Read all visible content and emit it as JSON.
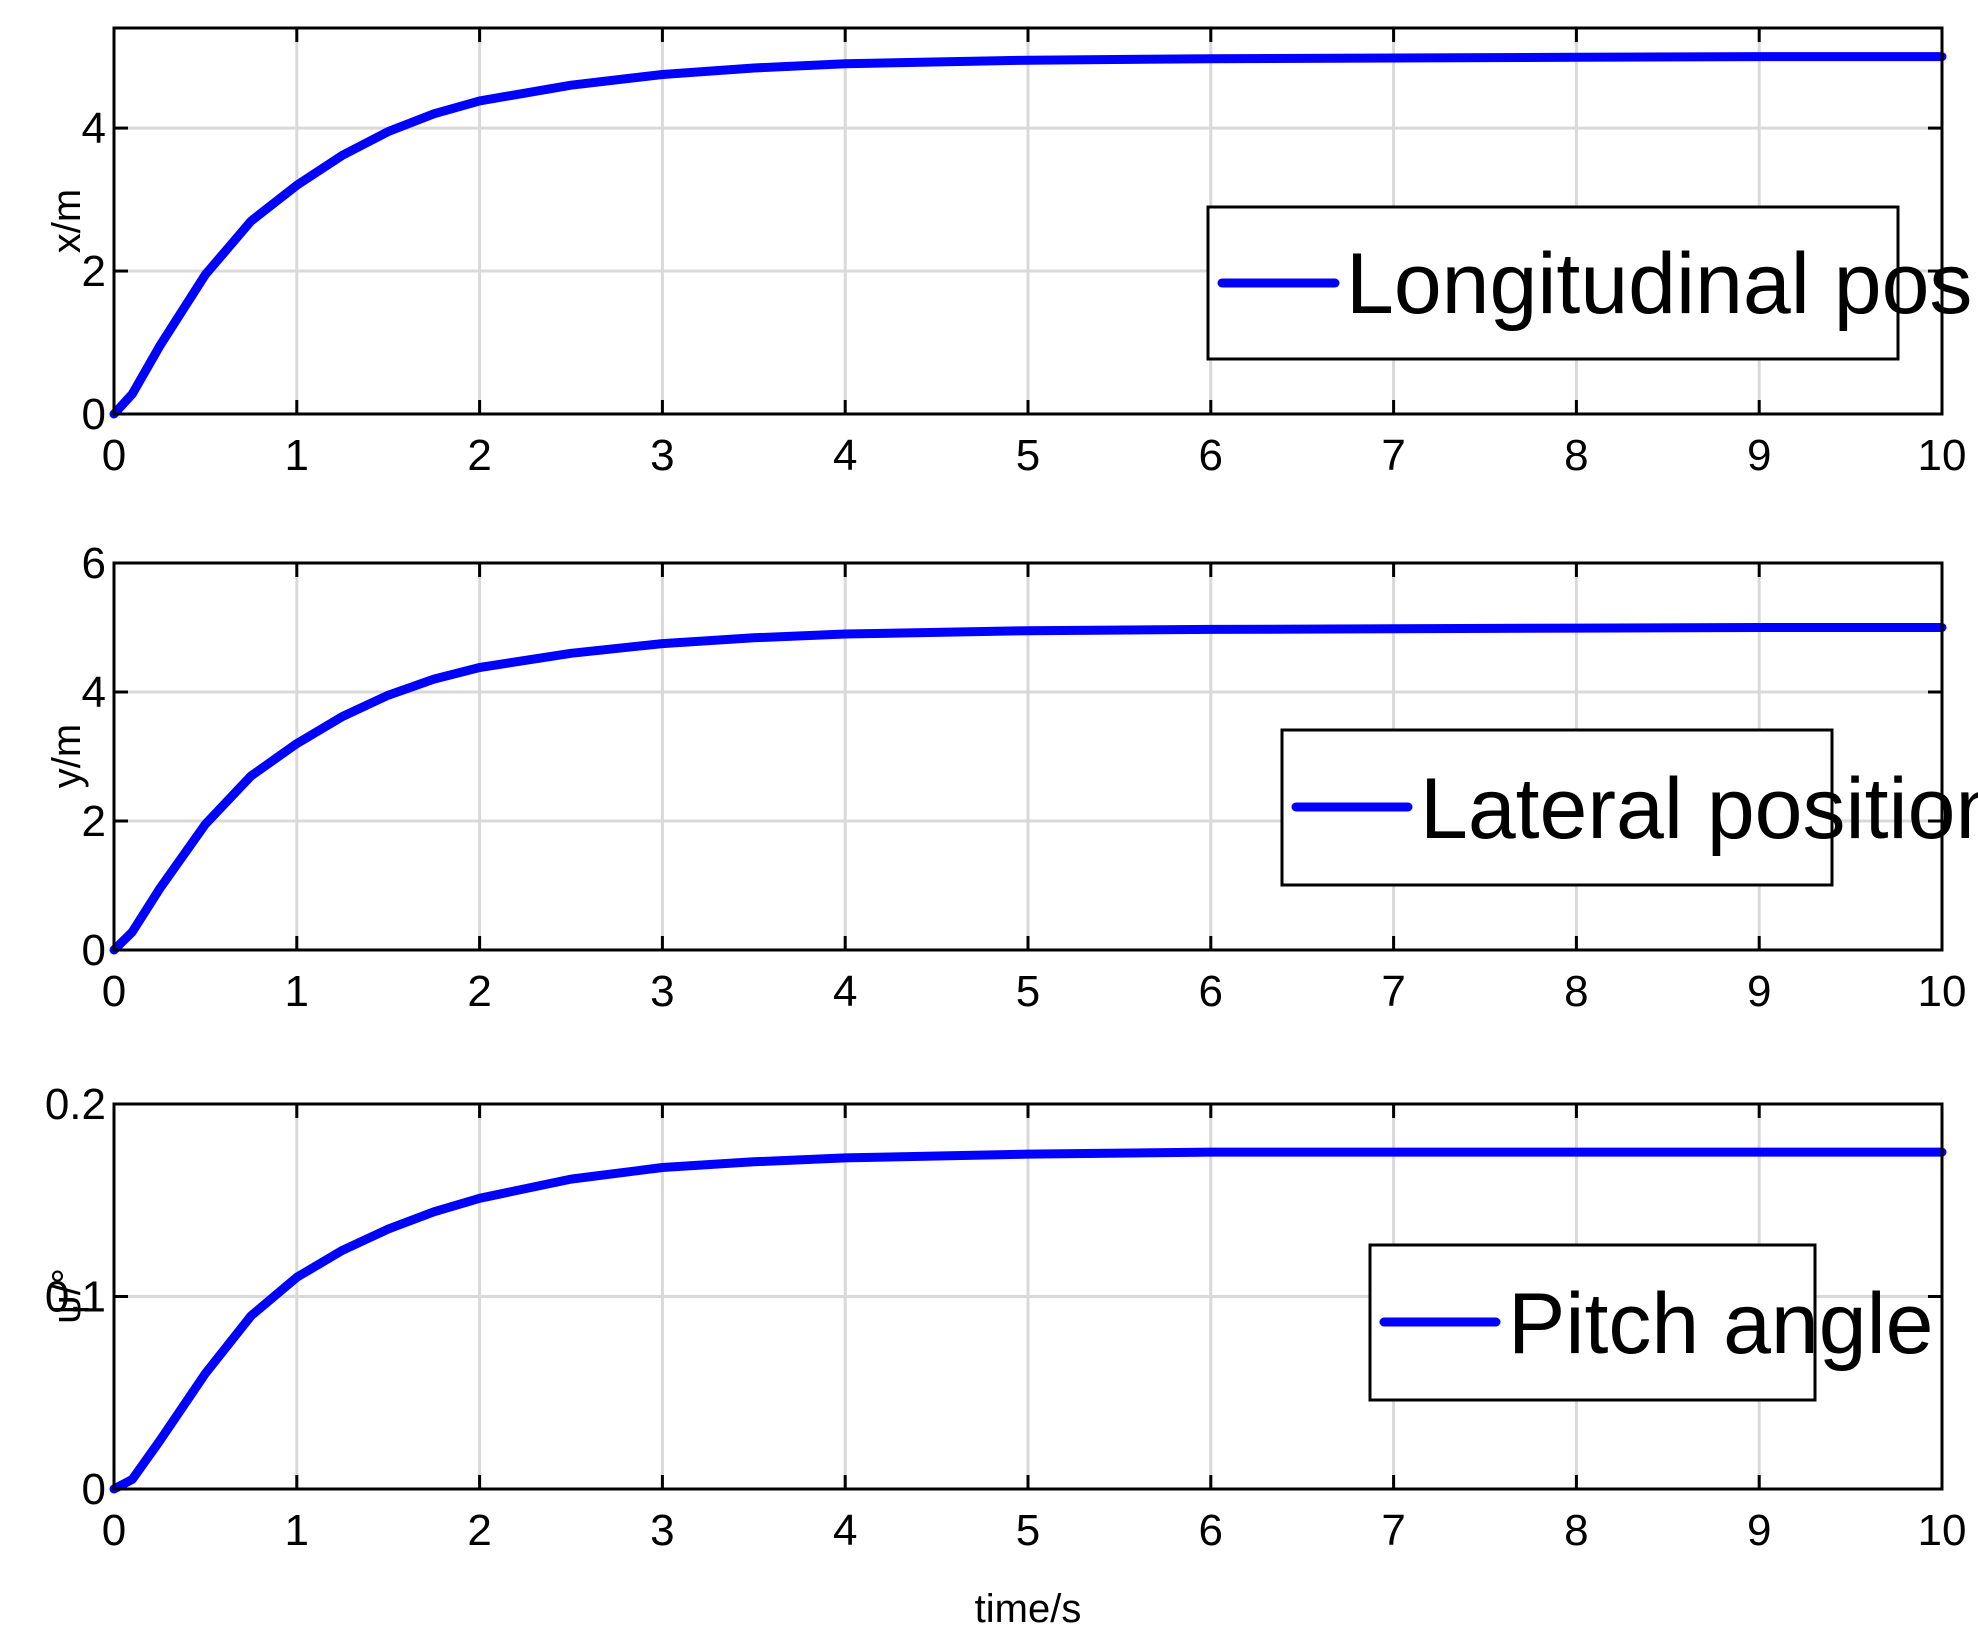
{
  "colors": {
    "series": "#0000ff",
    "grid": "#d9d9d9",
    "axis": "#000000",
    "background": "#ffffff"
  },
  "chart_data": [
    {
      "type": "line",
      "xlabel": "",
      "ylabel": "x/m",
      "xlim": [
        0,
        10
      ],
      "ylim": [
        0,
        5.4
      ],
      "xticks": [
        "0",
        "1",
        "2",
        "3",
        "4",
        "5",
        "6",
        "7",
        "8",
        "9",
        "10"
      ],
      "yticks": [
        {
          "value": 0,
          "label": "0"
        },
        {
          "value": 2,
          "label": "2"
        },
        {
          "value": 4,
          "label": "4"
        }
      ],
      "grid": true,
      "legend_position": "right",
      "series": [
        {
          "name": "Longitudinal position",
          "color": "#0000ff",
          "x": [
            0,
            0.1,
            0.25,
            0.5,
            0.75,
            1,
            1.25,
            1.5,
            1.75,
            2,
            2.5,
            3,
            3.5,
            4,
            5,
            6,
            7,
            8,
            9,
            10
          ],
          "y": [
            0,
            0.28,
            0.95,
            1.95,
            2.7,
            3.2,
            3.62,
            3.95,
            4.2,
            4.38,
            4.6,
            4.75,
            4.84,
            4.9,
            4.95,
            4.97,
            4.98,
            4.99,
            5.0,
            5.0
          ]
        }
      ]
    },
    {
      "type": "line",
      "xlabel": "",
      "ylabel": "y/m",
      "xlim": [
        0,
        10
      ],
      "ylim": [
        0,
        6
      ],
      "xticks": [
        "0",
        "1",
        "2",
        "3",
        "4",
        "5",
        "6",
        "7",
        "8",
        "9",
        "10"
      ],
      "yticks": [
        {
          "value": 0,
          "label": "0"
        },
        {
          "value": 2,
          "label": "2"
        },
        {
          "value": 4,
          "label": "4"
        },
        {
          "value": 6,
          "label": "6"
        }
      ],
      "grid": true,
      "legend_position": "right",
      "series": [
        {
          "name": "Lateral position",
          "color": "#0000ff",
          "x": [
            0,
            0.1,
            0.25,
            0.5,
            0.75,
            1,
            1.25,
            1.5,
            1.75,
            2,
            2.5,
            3,
            3.5,
            4,
            5,
            6,
            7,
            8,
            9,
            10
          ],
          "y": [
            0,
            0.28,
            0.95,
            1.95,
            2.7,
            3.2,
            3.62,
            3.95,
            4.2,
            4.38,
            4.6,
            4.75,
            4.84,
            4.9,
            4.95,
            4.97,
            4.98,
            4.99,
            5.0,
            5.0
          ]
        }
      ]
    },
    {
      "type": "line",
      "xlabel": "time/s",
      "ylabel": "ψ/°",
      "xlim": [
        0,
        10
      ],
      "ylim": [
        0,
        0.2
      ],
      "xticks": [
        "0",
        "1",
        "2",
        "3",
        "4",
        "5",
        "6",
        "7",
        "8",
        "9",
        "10"
      ],
      "yticks": [
        {
          "value": 0,
          "label": "0"
        },
        {
          "value": 0.1,
          "label": "0.1"
        },
        {
          "value": 0.2,
          "label": "0.2"
        }
      ],
      "grid": true,
      "legend_position": "right",
      "series": [
        {
          "name": "Pitch angle",
          "color": "#0000ff",
          "x": [
            0,
            0.1,
            0.25,
            0.5,
            0.75,
            1,
            1.25,
            1.5,
            1.75,
            2,
            2.5,
            3,
            3.5,
            4,
            5,
            6,
            7,
            8,
            9,
            10
          ],
          "y": [
            0,
            0.005,
            0.025,
            0.06,
            0.09,
            0.11,
            0.124,
            0.135,
            0.144,
            0.151,
            0.161,
            0.167,
            0.17,
            0.172,
            0.174,
            0.175,
            0.175,
            0.175,
            0.175,
            0.175
          ]
        }
      ]
    }
  ]
}
